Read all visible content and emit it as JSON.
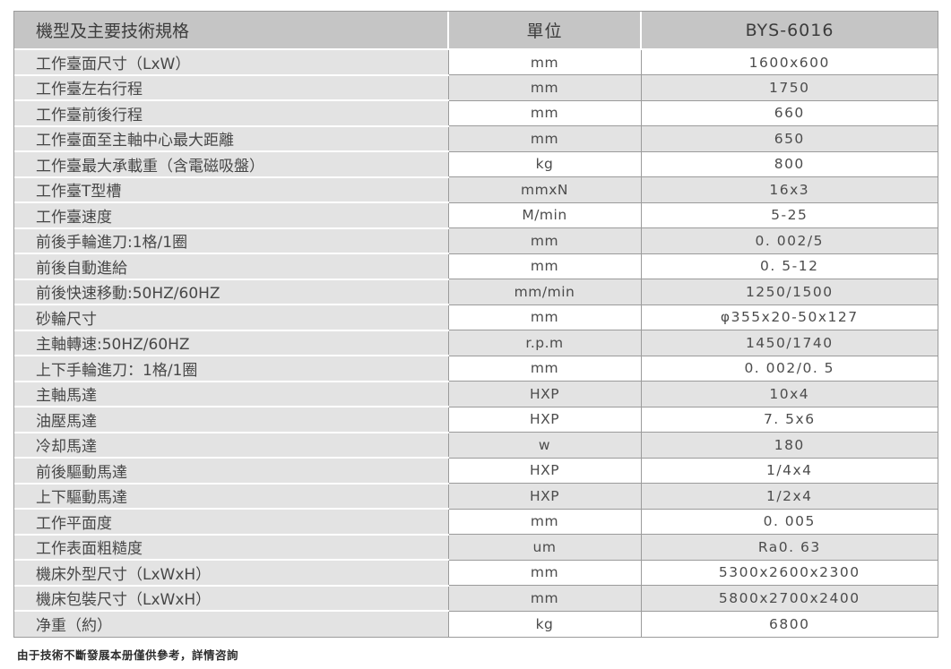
{
  "table": {
    "columns": {
      "spec": "機型及主要技術規格",
      "unit": "單位",
      "model": "BYS-6016"
    },
    "rows": [
      {
        "spec": "工作臺面尺寸（LxW）",
        "unit": "mm",
        "value": "1600x600"
      },
      {
        "spec": "工作臺左右行程",
        "unit": "mm",
        "value": "1750"
      },
      {
        "spec": "工作臺前後行程",
        "unit": "mm",
        "value": "660"
      },
      {
        "spec": "工作臺面至主軸中心最大距離",
        "unit": "mm",
        "value": "650"
      },
      {
        "spec": "工作臺最大承載重（含電磁吸盤）",
        "unit": "kg",
        "value": "800"
      },
      {
        "spec": "工作臺T型槽",
        "unit": "mmxN",
        "value": "16x3"
      },
      {
        "spec": "工作臺速度",
        "unit": "M/min",
        "value": "5-25"
      },
      {
        "spec": "前後手輪進刀:1格/1圈",
        "unit": "mm",
        "value": "0. 002/5"
      },
      {
        "spec": "前後自動進給",
        "unit": "mm",
        "value": "0. 5-12"
      },
      {
        "spec": "前後快速移動:50HZ/60HZ",
        "unit": "mm/min",
        "value": "1250/1500"
      },
      {
        "spec": "砂輪尺寸",
        "unit": "mm",
        "value": "φ355x20-50x127"
      },
      {
        "spec": "主軸轉速:50HZ/60HZ",
        "unit": "r.p.m",
        "value": "1450/1740"
      },
      {
        "spec": "上下手輪進刀：1格/1圈",
        "unit": "mm",
        "value": "0. 002/0. 5"
      },
      {
        "spec": "主軸馬達",
        "unit": "HXP",
        "value": "10x4"
      },
      {
        "spec": "油壓馬達",
        "unit": "HXP",
        "value": "7. 5x6"
      },
      {
        "spec": "冷却馬達",
        "unit": "w",
        "value": "180"
      },
      {
        "spec": "前後驅動馬達",
        "unit": "HXP",
        "value": "1/4x4"
      },
      {
        "spec": "上下驅動馬達",
        "unit": "HXP",
        "value": "1/2x4"
      },
      {
        "spec": "工作平面度",
        "unit": "mm",
        "value": "0. 005"
      },
      {
        "spec": "工作表面粗糙度",
        "unit": "um",
        "value": "Ra0. 63"
      },
      {
        "spec": "機床外型尺寸（LxWxH）",
        "unit": "mm",
        "value": "5300x2600x2300"
      },
      {
        "spec": "機床包裝尺寸（LxWxH）",
        "unit": "mm",
        "value": "5800x2700x2400"
      },
      {
        "spec": "净重（約）",
        "unit": "kg",
        "value": "6800"
      }
    ]
  },
  "footer": {
    "note": "由于技術不斷發展本册僅供參考，詳情咨詢"
  },
  "colors": {
    "header_bg": "#c5c5c5",
    "row_alt_bg": "#e3e3e3",
    "spec_col_bg": "#e3e3e3",
    "border": "#9b9b9b",
    "text": "#474747"
  }
}
